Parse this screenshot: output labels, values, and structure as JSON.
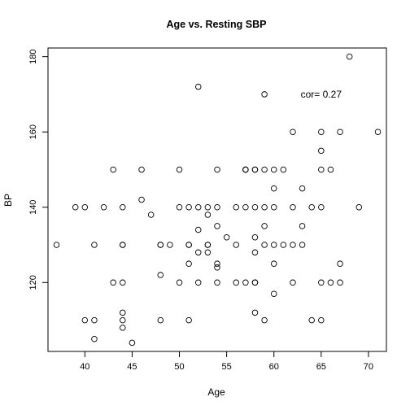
{
  "chart_data": {
    "type": "scatter",
    "title": "Age vs. Resting SBP",
    "xlabel": "Age",
    "ylabel": "BP",
    "xlim": [
      36.1,
      71.9
    ],
    "ylim": [
      101.7,
      182.3
    ],
    "xticks": [
      40,
      45,
      50,
      55,
      60,
      65,
      70
    ],
    "yticks": [
      120,
      140,
      160,
      180
    ],
    "annotation": {
      "text": "cor= 0.27",
      "x": 65,
      "y": 170
    },
    "grid": false,
    "points": [
      [
        37,
        130
      ],
      [
        39,
        140
      ],
      [
        40,
        140
      ],
      [
        40,
        110
      ],
      [
        41,
        130
      ],
      [
        41,
        110
      ],
      [
        41,
        105
      ],
      [
        42,
        140
      ],
      [
        43,
        150
      ],
      [
        43,
        120
      ],
      [
        44,
        140
      ],
      [
        44,
        130
      ],
      [
        44,
        130
      ],
      [
        44,
        120
      ],
      [
        44,
        112
      ],
      [
        44,
        110
      ],
      [
        44,
        108
      ],
      [
        45,
        104
      ],
      [
        46,
        150
      ],
      [
        46,
        142
      ],
      [
        47,
        138
      ],
      [
        48,
        130
      ],
      [
        48,
        130
      ],
      [
        48,
        122
      ],
      [
        48,
        110
      ],
      [
        49,
        130
      ],
      [
        50,
        150
      ],
      [
        50,
        140
      ],
      [
        50,
        120
      ],
      [
        51,
        140
      ],
      [
        51,
        130
      ],
      [
        51,
        130
      ],
      [
        51,
        125
      ],
      [
        51,
        110
      ],
      [
        52,
        172
      ],
      [
        52,
        140
      ],
      [
        52,
        134
      ],
      [
        52,
        128
      ],
      [
        52,
        120
      ],
      [
        53,
        140
      ],
      [
        53,
        138
      ],
      [
        53,
        130
      ],
      [
        53,
        130
      ],
      [
        53,
        128
      ],
      [
        54,
        150
      ],
      [
        54,
        140
      ],
      [
        54,
        135
      ],
      [
        54,
        125
      ],
      [
        54,
        124
      ],
      [
        54,
        120
      ],
      [
        55,
        132
      ],
      [
        56,
        140
      ],
      [
        56,
        130
      ],
      [
        56,
        120
      ],
      [
        57,
        150
      ],
      [
        57,
        150
      ],
      [
        57,
        150
      ],
      [
        57,
        140
      ],
      [
        57,
        120
      ],
      [
        58,
        150
      ],
      [
        58,
        150
      ],
      [
        58,
        140
      ],
      [
        58,
        132
      ],
      [
        58,
        128
      ],
      [
        58,
        120
      ],
      [
        58,
        120
      ],
      [
        58,
        112
      ],
      [
        59,
        170
      ],
      [
        59,
        150
      ],
      [
        59,
        140
      ],
      [
        59,
        135
      ],
      [
        59,
        130
      ],
      [
        59,
        110
      ],
      [
        60,
        150
      ],
      [
        60,
        145
      ],
      [
        60,
        140
      ],
      [
        60,
        130
      ],
      [
        60,
        125
      ],
      [
        60,
        117
      ],
      [
        61,
        150
      ],
      [
        61,
        130
      ],
      [
        62,
        160
      ],
      [
        62,
        140
      ],
      [
        62,
        130
      ],
      [
        62,
        120
      ],
      [
        63,
        145
      ],
      [
        63,
        135
      ],
      [
        63,
        130
      ],
      [
        64,
        140
      ],
      [
        64,
        110
      ],
      [
        65,
        160
      ],
      [
        65,
        155
      ],
      [
        65,
        150
      ],
      [
        65,
        140
      ],
      [
        65,
        120
      ],
      [
        65,
        110
      ],
      [
        66,
        150
      ],
      [
        66,
        120
      ],
      [
        67,
        160
      ],
      [
        67,
        125
      ],
      [
        67,
        120
      ],
      [
        68,
        180
      ],
      [
        69,
        140
      ],
      [
        71,
        160
      ]
    ]
  }
}
